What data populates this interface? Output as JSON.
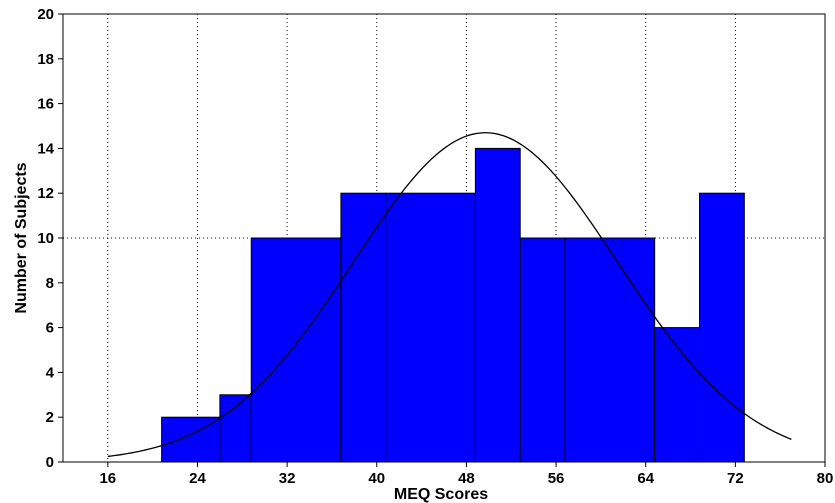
{
  "chart_data": {
    "type": "bar",
    "subtype": "histogram",
    "title": "",
    "xlabel": "MEQ Scores",
    "ylabel": "Number of Subjects",
    "xlim": [
      12,
      80
    ],
    "ylim": [
      0,
      20
    ],
    "x_ticks": [
      16,
      24,
      32,
      40,
      48,
      56,
      64,
      72,
      80
    ],
    "y_ticks": [
      0,
      2,
      4,
      6,
      8,
      10,
      12,
      14,
      16,
      18,
      20
    ],
    "grid": true,
    "bar_color": "#0000ff",
    "bins": [
      {
        "start": 20.8,
        "end": 26.0,
        "count": 2
      },
      {
        "start": 26.0,
        "end": 28.8,
        "count": 3
      },
      {
        "start": 28.8,
        "end": 36.8,
        "count": 10
      },
      {
        "start": 36.8,
        "end": 40.8,
        "count": 12
      },
      {
        "start": 40.8,
        "end": 48.8,
        "count": 12
      },
      {
        "start": 48.8,
        "end": 52.8,
        "count": 14
      },
      {
        "start": 52.8,
        "end": 56.8,
        "count": 10
      },
      {
        "start": 56.8,
        "end": 64.8,
        "count": 10
      },
      {
        "start": 64.8,
        "end": 68.8,
        "count": 6
      },
      {
        "start": 68.8,
        "end": 72.8,
        "count": 12
      }
    ],
    "normal_fit": {
      "mean": 49.7,
      "sd": 11.8,
      "peak": 14.7,
      "x_range": [
        16,
        77
      ],
      "color": "#000000"
    }
  }
}
